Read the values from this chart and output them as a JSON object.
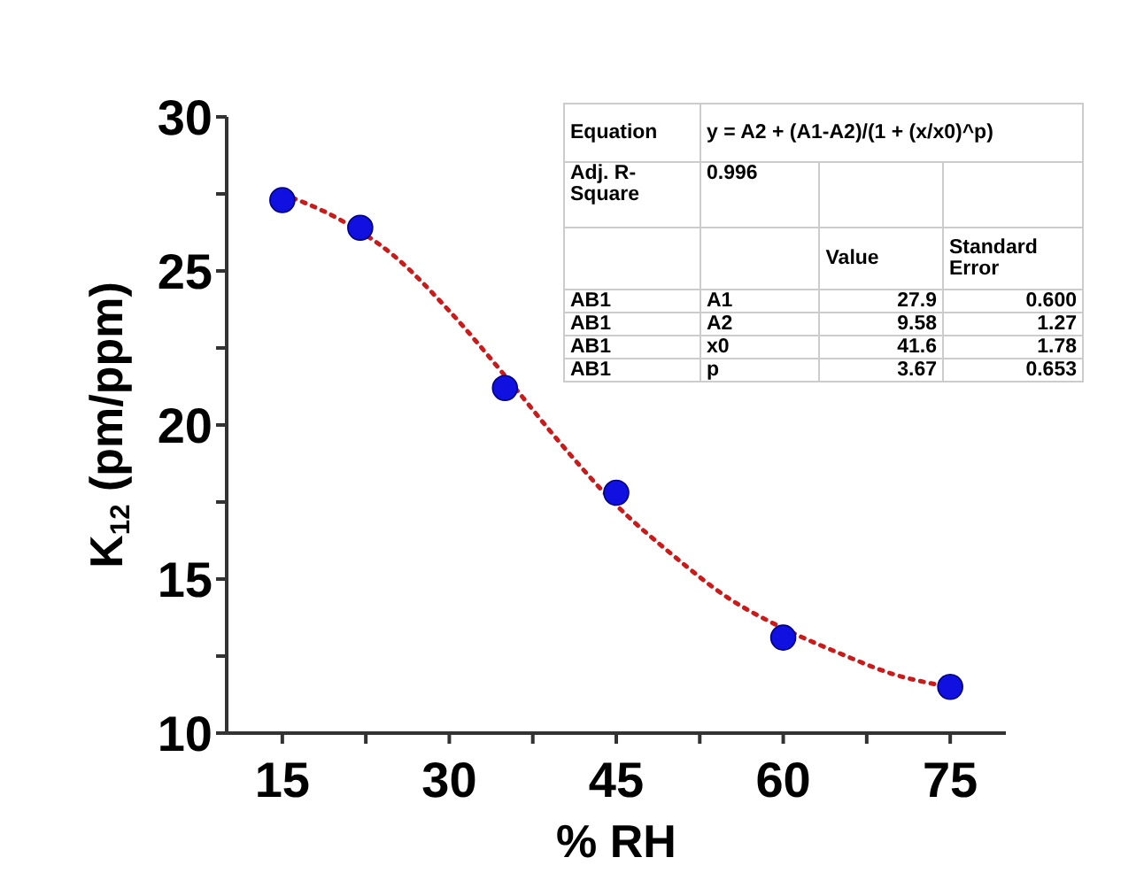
{
  "chart_data": {
    "type": "scatter",
    "xlabel": "% RH",
    "ylabel": "K$_{12}$ (pm/ppm)",
    "xlim": [
      10,
      80
    ],
    "xticks": [
      15,
      {
        "value": 22.5,
        "label": null
      },
      30,
      {
        "value": 37.5,
        "label": null
      },
      45,
      {
        "value": 52.5,
        "label": null
      },
      60,
      {
        "value": 67.5,
        "label": null
      },
      75
    ],
    "ylim": [
      10,
      30
    ],
    "yticks": [
      10,
      {
        "value": 12.5,
        "label": null
      },
      15,
      {
        "value": 17.5,
        "label": null
      },
      20,
      {
        "value": 22.5,
        "label": null
      },
      25,
      {
        "value": 27.5,
        "label": null
      },
      30
    ],
    "marker": "circle",
    "series": [
      {
        "type": "line",
        "color": "#cc1a1a",
        "marker": "none",
        "line_style": "dotted",
        "x": [
          15,
          20,
          25,
          30,
          35,
          40,
          45,
          50,
          55,
          60,
          65,
          70,
          75
        ],
        "values": [
          27.5,
          26.7,
          25.5,
          23.7,
          21.6,
          19.4,
          17.4,
          15.8,
          14.4,
          13.4,
          12.6,
          11.9,
          11.5
        ]
      },
      {
        "color": "#1010e0",
        "x": [
          15,
          22,
          35,
          45,
          60,
          75
        ],
        "values": [
          27.3,
          26.4,
          21.2,
          17.8,
          13.1,
          11.5
        ]
      }
    ],
    "annotations": [
      "Equation",
      "y = A2 + (A1-A2)/(1 + (x/x0)^p)",
      "Adj. R-Square",
      "0.996",
      "Value",
      "Standard Error",
      "AB1",
      "A1",
      "27.9",
      "0.600",
      "AB1",
      "A2",
      "9.58",
      "1.27",
      "AB1",
      "x0",
      "41.6",
      "1.78",
      "AB1",
      "p",
      "3.67",
      "0.653"
    ]
  }
}
